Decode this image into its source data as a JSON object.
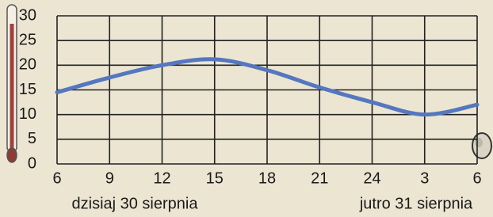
{
  "chart_data": {
    "type": "line",
    "categories": [
      "6",
      "9",
      "12",
      "15",
      "18",
      "21",
      "24",
      "3",
      "6"
    ],
    "series": [
      {
        "color": "#5577c0",
        "values": [
          14.5,
          17.5,
          20,
          21.2,
          19,
          15.5,
          12.5,
          10,
          12
        ]
      }
    ],
    "ylim": [
      0,
      30
    ],
    "yticks": [
      0,
      5,
      10,
      15,
      20,
      25,
      30
    ],
    "grid": true,
    "annotations": [
      "dzisiaj 30 sierpnia",
      "jutro 31 sierpnia"
    ]
  }
}
